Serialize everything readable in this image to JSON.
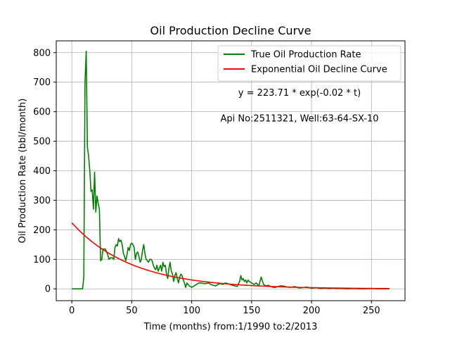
{
  "chart_data": {
    "type": "line",
    "title": "Oil Production Decline Curve",
    "xlabel": "Time (months) from:1/1990 to:2/2013",
    "ylabel": "Oil Production Rate (bbl/month)",
    "xlim": [
      -13,
      278
    ],
    "ylim": [
      -40,
      840
    ],
    "xticks": [
      0,
      50,
      100,
      150,
      200,
      250
    ],
    "yticks": [
      0,
      100,
      200,
      300,
      400,
      500,
      600,
      700,
      800
    ],
    "grid": true,
    "legend_placement": "top-right",
    "annotations": [
      {
        "text": "y = 223.71 * exp(-0.02 * t)",
        "x": 190,
        "y": 665
      },
      {
        "text": "Api No:2511321, Well:63-64-SX-10",
        "x": 190,
        "y": 578
      }
    ],
    "series": [
      {
        "name": "True Oil Production Rate",
        "color": "#008000",
        "style": "line",
        "x": [
          0,
          1,
          2,
          3,
          4,
          5,
          6,
          7,
          8,
          9,
          10,
          11,
          12,
          13,
          14,
          15,
          16,
          17,
          18,
          19,
          20,
          21,
          22,
          23,
          24,
          25,
          26,
          27,
          28,
          29,
          30,
          31,
          32,
          33,
          34,
          35,
          36,
          37,
          38,
          39,
          40,
          41,
          42,
          43,
          44,
          45,
          46,
          47,
          48,
          49,
          50,
          51,
          52,
          53,
          54,
          55,
          56,
          57,
          58,
          59,
          60,
          61,
          62,
          63,
          64,
          65,
          66,
          67,
          68,
          69,
          70,
          71,
          72,
          73,
          74,
          75,
          76,
          77,
          78,
          79,
          80,
          81,
          82,
          83,
          84,
          85,
          86,
          87,
          88,
          89,
          90,
          91,
          92,
          93,
          94,
          95,
          96,
          97,
          98,
          99,
          100,
          102,
          104,
          106,
          108,
          110,
          112,
          114,
          116,
          118,
          120,
          122,
          124,
          126,
          128,
          130,
          132,
          134,
          136,
          138,
          140,
          141,
          142,
          143,
          144,
          145,
          146,
          147,
          148,
          150,
          152,
          154,
          156,
          157,
          158,
          160,
          162,
          164,
          166,
          168,
          170,
          172,
          174,
          176,
          178,
          180,
          182,
          184,
          186,
          188,
          190,
          192,
          194,
          196,
          198,
          200,
          202,
          204,
          206,
          208,
          210,
          212,
          214,
          216,
          218,
          220,
          225,
          230,
          235,
          240,
          245,
          250,
          255,
          260,
          265
        ],
        "values": [
          0,
          0,
          0,
          0,
          0,
          0,
          0,
          0,
          0,
          0,
          40,
          700,
          805,
          480,
          450,
          400,
          330,
          335,
          270,
          395,
          260,
          315,
          290,
          270,
          95,
          100,
          135,
          135,
          135,
          125,
          115,
          100,
          105,
          105,
          105,
          100,
          140,
          150,
          145,
          170,
          160,
          165,
          150,
          120,
          110,
          95,
          115,
          140,
          130,
          150,
          155,
          150,
          140,
          100,
          120,
          125,
          110,
          90,
          100,
          130,
          150,
          120,
          100,
          95,
          90,
          100,
          100,
          95,
          80,
          70,
          65,
          80,
          60,
          70,
          80,
          60,
          90,
          75,
          80,
          50,
          35,
          70,
          90,
          60,
          50,
          25,
          45,
          55,
          35,
          20,
          40,
          50,
          45,
          30,
          20,
          5,
          20,
          15,
          10,
          8,
          5,
          10,
          15,
          20,
          20,
          18,
          18,
          20,
          15,
          12,
          10,
          15,
          18,
          15,
          20,
          18,
          15,
          12,
          10,
          8,
          25,
          45,
          30,
          35,
          25,
          30,
          20,
          30,
          25,
          20,
          15,
          20,
          10,
          25,
          40,
          15,
          10,
          12,
          8,
          5,
          5,
          8,
          10,
          10,
          8,
          6,
          5,
          6,
          8,
          5,
          3,
          4,
          5,
          6,
          4,
          2,
          3,
          4,
          2,
          1,
          2,
          2,
          1,
          1,
          2,
          1,
          1,
          0,
          1,
          0,
          0,
          1,
          0,
          0,
          0
        ]
      },
      {
        "name": "Exponential Oil Decline Curve",
        "color": "#ff0000",
        "style": "line",
        "model": {
          "a": 223.71,
          "b": 0.02,
          "x_start": 0,
          "x_end": 265
        }
      }
    ]
  }
}
